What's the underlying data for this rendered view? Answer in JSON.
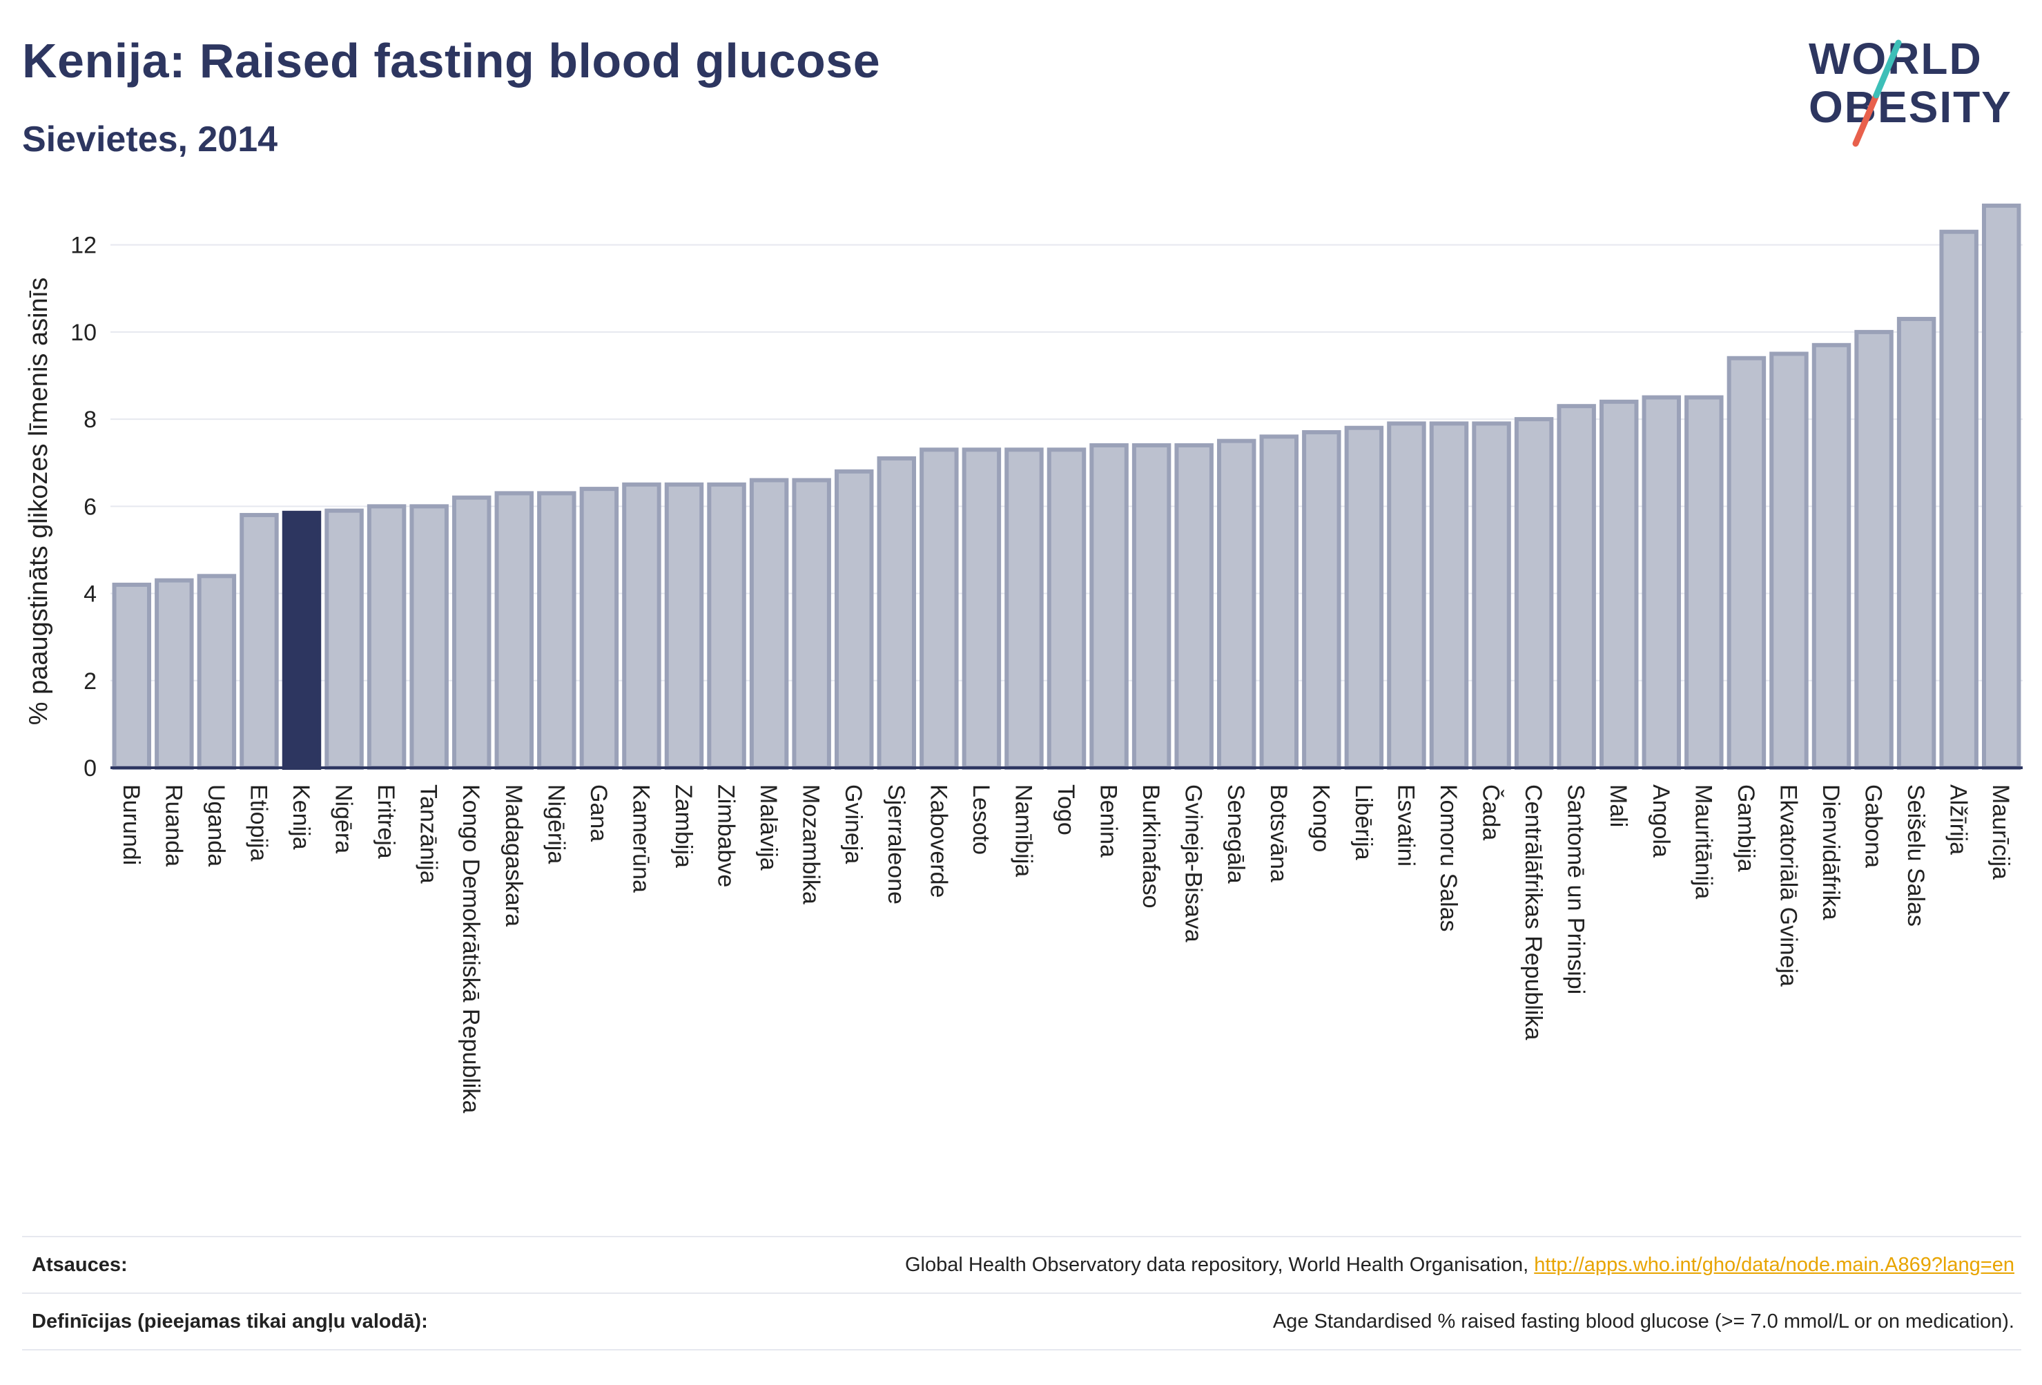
{
  "header": {
    "title": "Kenija: Raised fasting blood glucose",
    "subtitle": "Sievietes, 2014"
  },
  "logo": {
    "line1": "WORLD",
    "line2": "OBESITY",
    "accent_colors": [
      "#3dbfb8",
      "#e8604c"
    ]
  },
  "colors": {
    "bar": "#bcc1cf",
    "bar_stroke": "#9aa1b8",
    "highlight": "#2d3660",
    "grid": "#e6e8ef",
    "text": "#2d3660",
    "link": "#e8a400"
  },
  "chart_data": {
    "type": "bar",
    "title": "Kenija: Raised fasting blood glucose",
    "subtitle": "Sievietes, 2014",
    "ylabel": "% paaugstināts glikozes līmenis asinīs",
    "xlabel": "",
    "ylim": [
      0,
      13.5
    ],
    "yticks": [
      0,
      2,
      4,
      6,
      8,
      10,
      12
    ],
    "grid": true,
    "highlight": "Kenija",
    "categories": [
      "Burundi",
      "Ruanda",
      "Uganda",
      "Etiopija",
      "Kenija",
      "Nigēra",
      "Eritreja",
      "Tanzānija",
      "Kongo Demokrātiskā Republika",
      "Madagaskara",
      "Nigērija",
      "Gana",
      "Kamerūna",
      "Zambija",
      "Zimbabve",
      "Malāvija",
      "Mozambika",
      "Gvineja",
      "Sjerraleone",
      "Kaboverde",
      "Lesoto",
      "Namībija",
      "Togo",
      "Benina",
      "Burkinafaso",
      "Gvineja-Bisava",
      "Senegāla",
      "Botsvāna",
      "Kongo",
      "Libērija",
      "Esvatini",
      "Komoru Salas",
      "Čada",
      "Centrālāfrikas Republika",
      "Santomē un Prinsipi",
      "Mali",
      "Angola",
      "Mauritānija",
      "Gambija",
      "Ekvatoriālā Gvineja",
      "Dienvidāfrika",
      "Gabona",
      "Seišelu Salas",
      "Alžīrija",
      "Maurīcija"
    ],
    "values": [
      4.2,
      4.3,
      4.4,
      5.8,
      5.85,
      5.9,
      6.0,
      6.0,
      6.2,
      6.3,
      6.3,
      6.4,
      6.5,
      6.5,
      6.5,
      6.6,
      6.6,
      6.8,
      7.1,
      7.3,
      7.3,
      7.3,
      7.3,
      7.4,
      7.4,
      7.4,
      7.5,
      7.6,
      7.7,
      7.8,
      7.9,
      7.9,
      7.9,
      8.0,
      8.3,
      8.4,
      8.5,
      8.5,
      9.4,
      9.5,
      9.7,
      10.0,
      10.3,
      12.3,
      12.9
    ]
  },
  "footer": {
    "sources_label": "Atsauces:",
    "sources_text": "Global Health Observatory data repository, World Health Organisation,",
    "sources_link": "http://apps.who.int/gho/data/node.main.A869?lang=en",
    "definitions_label": "Definīcijas (pieejamas tikai angļu valodā):",
    "definitions_text": "Age Standardised % raised fasting blood glucose (>= 7.0 mmol/L or on medication)."
  }
}
